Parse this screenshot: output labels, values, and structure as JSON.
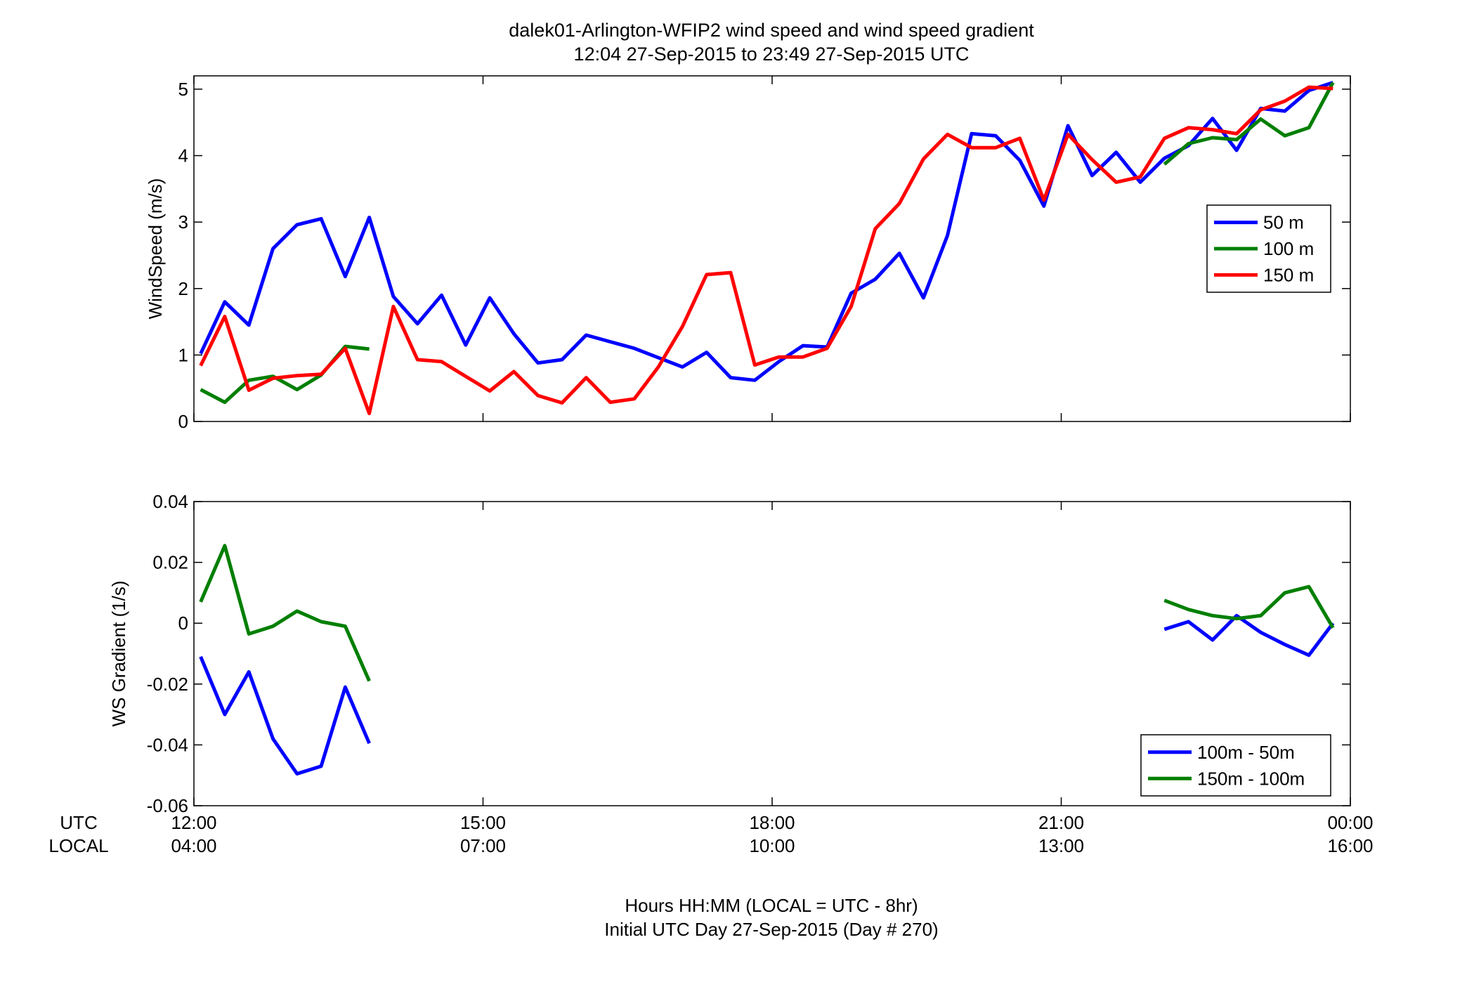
{
  "title": {
    "line1": "dalek01-Arlington-WFIP2  wind speed and wind speed gradient",
    "line2": "12:04 27-Sep-2015 to 23:49 27-Sep-2015  UTC"
  },
  "xaxis": {
    "row_label_utc": "UTC",
    "row_label_local": "LOCAL",
    "ticks_hours": [
      12,
      15,
      18,
      21,
      24
    ],
    "utc_labels": [
      "12:00",
      "15:00",
      "18:00",
      "21:00",
      "00:00"
    ],
    "local_labels": [
      "04:00",
      "07:00",
      "10:00",
      "13:00",
      "16:00"
    ],
    "xlabel_line1": "Hours HH:MM  (LOCAL = UTC - 8hr)",
    "xlabel_line2": "Initial UTC Day 27-Sep-2015 (Day # 270)",
    "range_hours": [
      12,
      24
    ]
  },
  "colors": {
    "blue": "#0000ff",
    "green": "#007f00",
    "red": "#ff0000"
  },
  "chart_data": [
    {
      "type": "line",
      "ylabel": "WindSpeed (m/s)",
      "ylim": [
        0,
        5.2
      ],
      "yticks": [
        0,
        1,
        2,
        3,
        4,
        5
      ],
      "ytick_labels": [
        "0",
        "1",
        "2",
        "3",
        "4",
        "5"
      ],
      "grid": false,
      "legend_position": "right",
      "x_hours": [
        12.07,
        12.32,
        12.57,
        12.82,
        13.07,
        13.32,
        13.57,
        13.82,
        14.07,
        14.32,
        14.57,
        14.82,
        15.07,
        15.32,
        15.57,
        15.82,
        16.07,
        16.32,
        16.57,
        16.82,
        17.07,
        17.32,
        17.57,
        17.82,
        18.07,
        18.32,
        18.57,
        18.82,
        19.07,
        19.32,
        19.57,
        19.82,
        20.07,
        20.32,
        20.57,
        20.82,
        21.07,
        21.32,
        21.57,
        21.82,
        22.07,
        22.32,
        22.57,
        22.82,
        23.07,
        23.32,
        23.57,
        23.82
      ],
      "series": [
        {
          "name": "50 m",
          "color": "#0000ff",
          "values": [
            1.02,
            1.8,
            1.45,
            2.6,
            2.96,
            3.05,
            2.18,
            3.07,
            1.88,
            1.47,
            1.9,
            1.15,
            1.86,
            1.32,
            0.88,
            0.93,
            1.3,
            1.2,
            1.1,
            0.96,
            0.82,
            1.04,
            0.66,
            0.62,
            0.9,
            1.14,
            1.12,
            1.93,
            2.14,
            2.53,
            1.86,
            2.8,
            4.33,
            4.3,
            3.93,
            3.24,
            4.45,
            3.7,
            4.05,
            3.6,
            3.96,
            4.15,
            4.56,
            4.08,
            4.71,
            4.67,
            4.98,
            5.1
          ]
        },
        {
          "name": "100 m",
          "color": "#007f00",
          "values": [
            0.48,
            0.29,
            0.62,
            0.68,
            0.48,
            0.7,
            1.13,
            1.09,
            null,
            null,
            null,
            null,
            null,
            null,
            null,
            null,
            null,
            null,
            null,
            null,
            null,
            null,
            null,
            null,
            null,
            null,
            null,
            null,
            null,
            null,
            null,
            null,
            null,
            null,
            null,
            null,
            null,
            null,
            null,
            null,
            3.87,
            4.18,
            4.27,
            4.24,
            4.55,
            4.3,
            4.42,
            5.1
          ]
        },
        {
          "name": "150 m",
          "color": "#ff0000",
          "values": [
            0.84,
            1.58,
            0.47,
            0.65,
            0.69,
            0.71,
            1.1,
            0.12,
            1.73,
            0.93,
            0.9,
            0.68,
            0.46,
            0.75,
            0.39,
            0.28,
            0.66,
            0.29,
            0.34,
            0.82,
            1.43,
            2.21,
            2.24,
            0.85,
            0.97,
            0.97,
            1.1,
            1.73,
            2.9,
            3.28,
            3.95,
            4.32,
            4.12,
            4.12,
            4.26,
            3.33,
            4.32,
            3.94,
            3.6,
            3.68,
            4.26,
            4.42,
            4.39,
            4.33,
            4.69,
            4.82,
            5.03,
            5.01
          ]
        }
      ]
    },
    {
      "type": "line",
      "ylabel": "WS Gradient (1/s)",
      "ylim": [
        -0.06,
        0.04
      ],
      "yticks": [
        -0.06,
        -0.04,
        -0.02,
        0,
        0.02,
        0.04
      ],
      "ytick_labels": [
        "-0.06",
        "-0.04",
        "-0.02",
        "0",
        "0.02",
        "0.04"
      ],
      "grid": false,
      "legend_position": "bottom-right",
      "x_hours": [
        12.07,
        12.32,
        12.57,
        12.82,
        13.07,
        13.32,
        13.57,
        13.82,
        14.07,
        14.32,
        14.57,
        14.82,
        15.07,
        15.32,
        15.57,
        15.82,
        16.07,
        16.32,
        16.57,
        16.82,
        17.07,
        17.32,
        17.57,
        17.82,
        18.07,
        18.32,
        18.57,
        18.82,
        19.07,
        19.32,
        19.57,
        19.82,
        20.07,
        20.32,
        20.57,
        20.82,
        21.07,
        21.32,
        21.57,
        21.82,
        22.07,
        22.32,
        22.57,
        22.82,
        23.07,
        23.32,
        23.57,
        23.82
      ],
      "series": [
        {
          "name": "100m - 50m",
          "color": "#0000ff",
          "values": [
            -0.011,
            -0.03,
            -0.016,
            -0.038,
            -0.0495,
            -0.047,
            -0.021,
            -0.0395,
            null,
            null,
            null,
            null,
            null,
            null,
            null,
            null,
            null,
            null,
            null,
            null,
            null,
            null,
            null,
            null,
            null,
            null,
            null,
            null,
            null,
            null,
            null,
            null,
            null,
            null,
            null,
            null,
            null,
            null,
            null,
            null,
            -0.002,
            0.0005,
            -0.0055,
            0.0025,
            -0.003,
            -0.007,
            -0.0105,
            0.0
          ]
        },
        {
          "name": "150m - 100m",
          "color": "#007f00",
          "values": [
            0.007,
            0.0255,
            -0.0035,
            -0.001,
            0.004,
            0.0005,
            -0.001,
            -0.019,
            null,
            null,
            null,
            null,
            null,
            null,
            null,
            null,
            null,
            null,
            null,
            null,
            null,
            null,
            null,
            null,
            null,
            null,
            null,
            null,
            null,
            null,
            null,
            null,
            null,
            null,
            null,
            null,
            null,
            null,
            null,
            null,
            0.0075,
            0.0045,
            0.0025,
            0.0015,
            0.0025,
            0.01,
            0.012,
            -0.0015
          ]
        }
      ]
    }
  ]
}
